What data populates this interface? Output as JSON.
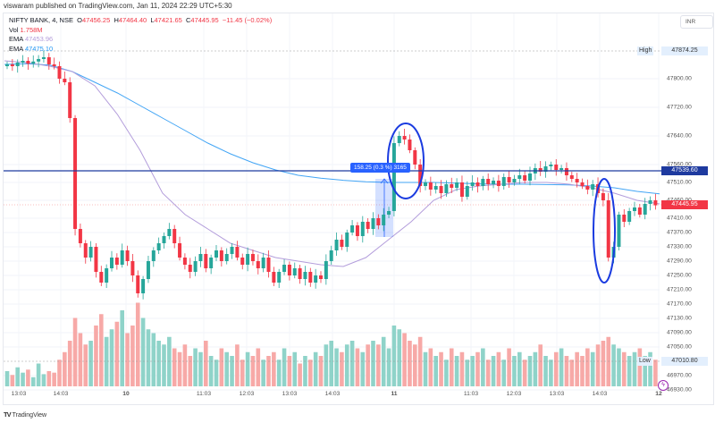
{
  "published": "viswaram published on TradingView.com, Jan 11, 2024 22:29 UTC+5:30",
  "legend": {
    "symbol": "NIFTY BANK, 4, NSE",
    "open_label": "O",
    "open": "47456.25",
    "high_label": "H",
    "high": "47464.40",
    "low_label": "L",
    "low": "47421.65",
    "close_label": "C",
    "close": "47445.95",
    "change": "−11.45 (−0.02%)",
    "vol_label": "Vol",
    "vol": "1.758M",
    "ema1_label": "EMA",
    "ema1": "47453.96",
    "ema2_label": "EMA",
    "ema2": "47475.10"
  },
  "currency": "INR",
  "brand": "TradingView",
  "brand_logo": "TV",
  "colors": {
    "up": "#26a69a",
    "down": "#f23645",
    "ema1": "#b39ddb",
    "ema2": "#42a5f5",
    "hline": "#1e3a9f",
    "annot": "#1a3be0"
  },
  "chart_data": {
    "type": "candlestick",
    "title": "NIFTY BANK, 4, NSE",
    "y_ticks": [
      "47800.00",
      "47720.00",
      "47640.00",
      "47560.00",
      "47510.00",
      "47460.00",
      "47410.00",
      "47370.00",
      "47330.00",
      "47290.00",
      "47250.00",
      "47210.00",
      "47170.00",
      "47130.00",
      "47090.00",
      "47050.00",
      "46970.00",
      "46930.00"
    ],
    "y_tick_values": [
      47800,
      47720,
      47640,
      47560,
      47510,
      47460,
      47410,
      47370,
      47330,
      47290,
      47250,
      47210,
      47170,
      47130,
      47090,
      47050,
      46970,
      46930
    ],
    "x_ticks": [
      "13:03",
      "14:03",
      "10",
      "11:03",
      "12:03",
      "13:03",
      "14:03",
      "11",
      "11:03",
      "12:03",
      "13:03",
      "14:03",
      "12"
    ],
    "high_marker": {
      "label": "High",
      "value": "47874.25"
    },
    "low_marker": {
      "label": "Low",
      "value": "47010.80"
    },
    "horizontal_line": {
      "value": "47539.60"
    },
    "last_price": {
      "value": "47445.95"
    },
    "measure": {
      "text": "158.25 (0.3 %) 3165"
    },
    "closes": [
      47840,
      47835,
      47845,
      47850,
      47842,
      47848,
      47855,
      47860,
      47840,
      47835,
      47800,
      47790,
      47690,
      47380,
      47340,
      47300,
      47330,
      47260,
      47230,
      47270,
      47300,
      47280,
      47320,
      47290,
      47250,
      47200,
      47240,
      47290,
      47320,
      47340,
      47360,
      47380,
      47340,
      47300,
      47280,
      47260,
      47290,
      47310,
      47270,
      47300,
      47320,
      47290,
      47310,
      47330,
      47300,
      47280,
      47310,
      47290,
      47270,
      47300,
      47260,
      47230,
      47260,
      47280,
      47250,
      47270,
      47240,
      47260,
      47230,
      47250,
      47240,
      47290,
      47320,
      47350,
      47330,
      47370,
      47390,
      47360,
      47400,
      47380,
      47410,
      47390,
      47420,
      47430,
      47620,
      47640,
      47630,
      47600,
      47560,
      47500,
      47510,
      47490,
      47500,
      47480,
      47505,
      47495,
      47510,
      47470,
      47500,
      47510,
      47500,
      47520,
      47505,
      47515,
      47500,
      47525,
      47510,
      47520,
      47530,
      47515,
      47535,
      47550,
      47540,
      47555,
      47560,
      47545,
      47550,
      47530,
      47520,
      47510,
      47500,
      47490,
      47505,
      47480,
      47460,
      47300,
      47330,
      47420,
      47400,
      47430,
      47440,
      47420,
      47450,
      47460,
      47446
    ],
    "volumes": [
      20,
      15,
      25,
      18,
      22,
      12,
      30,
      16,
      20,
      18,
      35,
      45,
      60,
      90,
      70,
      55,
      60,
      80,
      95,
      65,
      75,
      85,
      100,
      70,
      80,
      110,
      90,
      75,
      70,
      60,
      55,
      65,
      50,
      45,
      55,
      40,
      50,
      45,
      60,
      40,
      35,
      50,
      45,
      40,
      55,
      35,
      45,
      40,
      50,
      35,
      40,
      45,
      35,
      50,
      40,
      45,
      30,
      40,
      35,
      45,
      40,
      55,
      60,
      50,
      45,
      55,
      60,
      50,
      45,
      55,
      60,
      55,
      65,
      50,
      80,
      75,
      70,
      60,
      55,
      65,
      45,
      50,
      40,
      45,
      35,
      50,
      40,
      45,
      35,
      40,
      45,
      50,
      35,
      40,
      45,
      35,
      50,
      40,
      45,
      35,
      40,
      45,
      55,
      40,
      35,
      45,
      50,
      40,
      35,
      45,
      40,
      50,
      45,
      55,
      60,
      65,
      55,
      50,
      45,
      40,
      45,
      50,
      40,
      45,
      35
    ],
    "ema_fast": [
      47850,
      47845,
      47835,
      47820,
      47780,
      47700,
      47600,
      47480,
      47420,
      47380,
      47340,
      47320,
      47300,
      47290,
      47280,
      47275,
      47300,
      47350,
      47400,
      47460,
      47490,
      47500,
      47505,
      47510,
      47510,
      47505,
      47495,
      47480,
      47460,
      47450
    ],
    "ema_slow": [
      47840,
      47842,
      47838,
      47820,
      47790,
      47760,
      47725,
      47690,
      47655,
      47620,
      47590,
      47565,
      47545,
      47530,
      47522,
      47516,
      47512,
      47510,
      47510,
      47510,
      47508,
      47506,
      47505,
      47505,
      47504,
      47503,
      47500,
      47495,
      47485,
      47478
    ]
  }
}
